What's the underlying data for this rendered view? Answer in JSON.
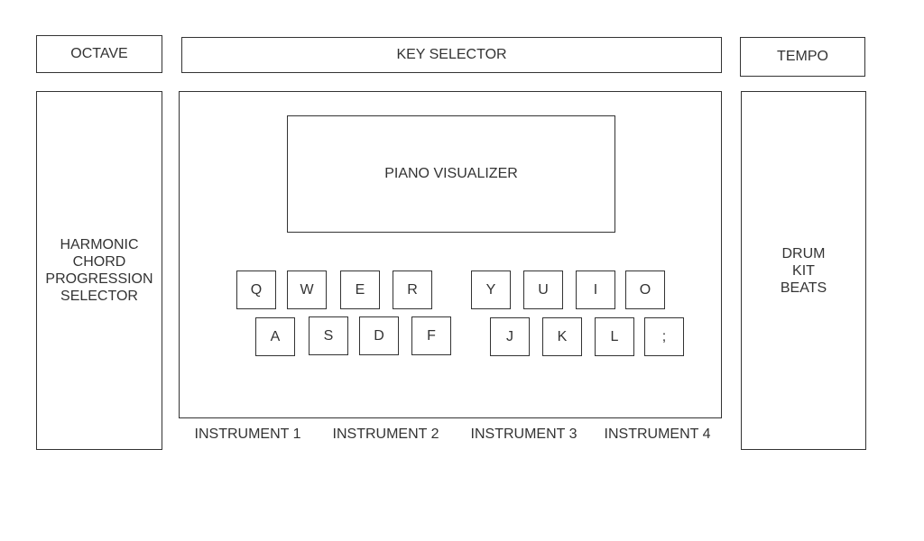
{
  "top": {
    "octave_label": "OCTAVE",
    "key_selector_label": "KEY SELECTOR",
    "tempo_label": "TEMPO"
  },
  "left_panel": {
    "label": "HARMONIC\nCHORD\nPROGRESSION\nSELECTOR"
  },
  "right_panel": {
    "label": "DRUM\nKIT\nBEATS"
  },
  "center": {
    "visualizer_label": "PIANO VISUALIZER",
    "keys_row1": [
      "Q",
      "W",
      "E",
      "R",
      "Y",
      "U",
      "I",
      "O"
    ],
    "keys_row2": [
      "A",
      "S",
      "D",
      "F",
      "J",
      "K",
      "L",
      ";"
    ],
    "instrument_tabs": [
      "INSTRUMENT 1",
      "INSTRUMENT 2",
      "INSTRUMENT 3",
      "INSTRUMENT 4"
    ]
  },
  "colors": {
    "border": "#333333",
    "text": "#333333",
    "background": "#ffffff"
  }
}
